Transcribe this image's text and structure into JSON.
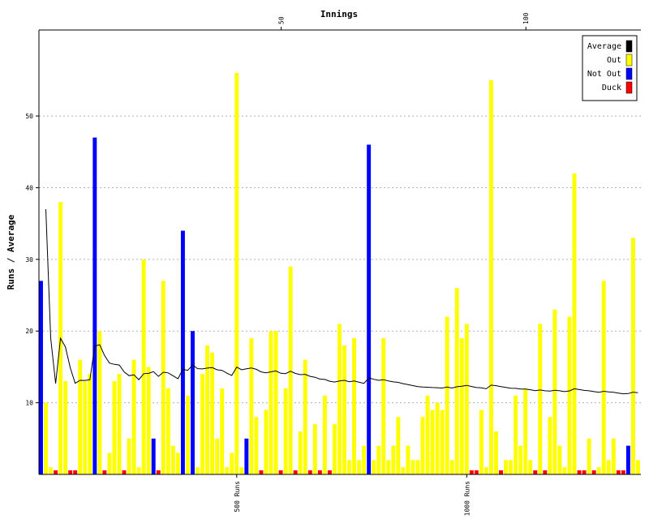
{
  "chart_data": {
    "type": "bar",
    "title": "",
    "xlabel_top": "Innings",
    "ylabel": "Runs / Average",
    "ylim": [
      0,
      62
    ],
    "y_ticks": [
      10,
      20,
      30,
      40,
      50
    ],
    "top_ticks": [
      {
        "value": 50,
        "label": "50"
      },
      {
        "value": 100,
        "label": "100"
      }
    ],
    "bottom_ticks": [
      {
        "value": 500,
        "label": "500 Runs"
      },
      {
        "value": 1000,
        "label": "1000 Runs"
      }
    ],
    "grid": true,
    "legend_position": "top-right",
    "legend": [
      {
        "label": "Average",
        "color": "#000000"
      },
      {
        "label": "Out",
        "color": "#ffff00"
      },
      {
        "label": "Not Out",
        "color": "#0000ff"
      },
      {
        "label": "Duck",
        "color": "#ff0000"
      }
    ],
    "colors": {
      "out": "#ffff00",
      "not_out": "#0000ff",
      "duck": "#ff0000",
      "average": "#000000"
    },
    "innings": [
      {
        "runs": 27,
        "result": "not_out"
      },
      {
        "runs": 10,
        "result": "out"
      },
      {
        "runs": 1,
        "result": "out"
      },
      {
        "runs": 0,
        "result": "duck"
      },
      {
        "runs": 38,
        "result": "out"
      },
      {
        "runs": 13,
        "result": "out"
      },
      {
        "runs": 0,
        "result": "duck"
      },
      {
        "runs": 0,
        "result": "duck"
      },
      {
        "runs": 16,
        "result": "out"
      },
      {
        "runs": 13,
        "result": "out"
      },
      {
        "runs": 14,
        "result": "out"
      },
      {
        "runs": 47,
        "result": "not_out"
      },
      {
        "runs": 20,
        "result": "out"
      },
      {
        "runs": 0,
        "result": "duck"
      },
      {
        "runs": 3,
        "result": "out"
      },
      {
        "runs": 13,
        "result": "out"
      },
      {
        "runs": 14,
        "result": "out"
      },
      {
        "runs": 0,
        "result": "duck"
      },
      {
        "runs": 5,
        "result": "out"
      },
      {
        "runs": 16,
        "result": "out"
      },
      {
        "runs": 1,
        "result": "out"
      },
      {
        "runs": 30,
        "result": "out"
      },
      {
        "runs": 15,
        "result": "out"
      },
      {
        "runs": 5,
        "result": "not_out"
      },
      {
        "runs": 0,
        "result": "duck"
      },
      {
        "runs": 27,
        "result": "out"
      },
      {
        "runs": 12,
        "result": "out"
      },
      {
        "runs": 4,
        "result": "out"
      },
      {
        "runs": 3,
        "result": "out"
      },
      {
        "runs": 34,
        "result": "not_out"
      },
      {
        "runs": 11,
        "result": "out"
      },
      {
        "runs": 20,
        "result": "not_out"
      },
      {
        "runs": 1,
        "result": "out"
      },
      {
        "runs": 14,
        "result": "out"
      },
      {
        "runs": 18,
        "result": "out"
      },
      {
        "runs": 17,
        "result": "out"
      },
      {
        "runs": 5,
        "result": "out"
      },
      {
        "runs": 12,
        "result": "out"
      },
      {
        "runs": 1,
        "result": "out"
      },
      {
        "runs": 3,
        "result": "out"
      },
      {
        "runs": 56,
        "result": "out"
      },
      {
        "runs": 1,
        "result": "out"
      },
      {
        "runs": 5,
        "result": "not_out"
      },
      {
        "runs": 19,
        "result": "out"
      },
      {
        "runs": 8,
        "result": "out"
      },
      {
        "runs": 0,
        "result": "duck"
      },
      {
        "runs": 9,
        "result": "out"
      },
      {
        "runs": 20,
        "result": "out"
      },
      {
        "runs": 20,
        "result": "out"
      },
      {
        "runs": 0,
        "result": "duck"
      },
      {
        "runs": 12,
        "result": "out"
      },
      {
        "runs": 29,
        "result": "out"
      },
      {
        "runs": 0,
        "result": "duck"
      },
      {
        "runs": 6,
        "result": "out"
      },
      {
        "runs": 16,
        "result": "out"
      },
      {
        "runs": 0,
        "result": "duck"
      },
      {
        "runs": 7,
        "result": "out"
      },
      {
        "runs": 0,
        "result": "duck"
      },
      {
        "runs": 11,
        "result": "out"
      },
      {
        "runs": 0,
        "result": "duck"
      },
      {
        "runs": 7,
        "result": "out"
      },
      {
        "runs": 21,
        "result": "out"
      },
      {
        "runs": 18,
        "result": "out"
      },
      {
        "runs": 2,
        "result": "out"
      },
      {
        "runs": 19,
        "result": "out"
      },
      {
        "runs": 2,
        "result": "out"
      },
      {
        "runs": 4,
        "result": "out"
      },
      {
        "runs": 46,
        "result": "not_out"
      },
      {
        "runs": 2,
        "result": "out"
      },
      {
        "runs": 4,
        "result": "out"
      },
      {
        "runs": 19,
        "result": "out"
      },
      {
        "runs": 2,
        "result": "out"
      },
      {
        "runs": 4,
        "result": "out"
      },
      {
        "runs": 8,
        "result": "out"
      },
      {
        "runs": 1,
        "result": "out"
      },
      {
        "runs": 4,
        "result": "out"
      },
      {
        "runs": 2,
        "result": "out"
      },
      {
        "runs": 2,
        "result": "out"
      },
      {
        "runs": 8,
        "result": "out"
      },
      {
        "runs": 11,
        "result": "out"
      },
      {
        "runs": 9,
        "result": "out"
      },
      {
        "runs": 10,
        "result": "out"
      },
      {
        "runs": 9,
        "result": "out"
      },
      {
        "runs": 22,
        "result": "out"
      },
      {
        "runs": 2,
        "result": "out"
      },
      {
        "runs": 26,
        "result": "out"
      },
      {
        "runs": 19,
        "result": "out"
      },
      {
        "runs": 21,
        "result": "out"
      },
      {
        "runs": 0,
        "result": "duck"
      },
      {
        "runs": 0,
        "result": "duck"
      },
      {
        "runs": 9,
        "result": "out"
      },
      {
        "runs": 1,
        "result": "out"
      },
      {
        "runs": 55,
        "result": "out"
      },
      {
        "runs": 6,
        "result": "out"
      },
      {
        "runs": 0,
        "result": "duck"
      },
      {
        "runs": 2,
        "result": "out"
      },
      {
        "runs": 2,
        "result": "out"
      },
      {
        "runs": 11,
        "result": "out"
      },
      {
        "runs": 4,
        "result": "out"
      },
      {
        "runs": 12,
        "result": "out"
      },
      {
        "runs": 2,
        "result": "out"
      },
      {
        "runs": 0,
        "result": "duck"
      },
      {
        "runs": 21,
        "result": "out"
      },
      {
        "runs": 0,
        "result": "duck"
      },
      {
        "runs": 8,
        "result": "out"
      },
      {
        "runs": 23,
        "result": "out"
      },
      {
        "runs": 4,
        "result": "out"
      },
      {
        "runs": 1,
        "result": "out"
      },
      {
        "runs": 22,
        "result": "out"
      },
      {
        "runs": 42,
        "result": "out"
      },
      {
        "runs": 0,
        "result": "duck"
      },
      {
        "runs": 0,
        "result": "duck"
      },
      {
        "runs": 5,
        "result": "out"
      },
      {
        "runs": 0,
        "result": "duck"
      },
      {
        "runs": 1,
        "result": "out"
      },
      {
        "runs": 27,
        "result": "out"
      },
      {
        "runs": 2,
        "result": "out"
      },
      {
        "runs": 5,
        "result": "out"
      },
      {
        "runs": 0,
        "result": "duck"
      },
      {
        "runs": 0,
        "result": "duck"
      },
      {
        "runs": 4,
        "result": "not_out"
      },
      {
        "runs": 33,
        "result": "out"
      },
      {
        "runs": 2,
        "result": "out"
      }
    ]
  }
}
